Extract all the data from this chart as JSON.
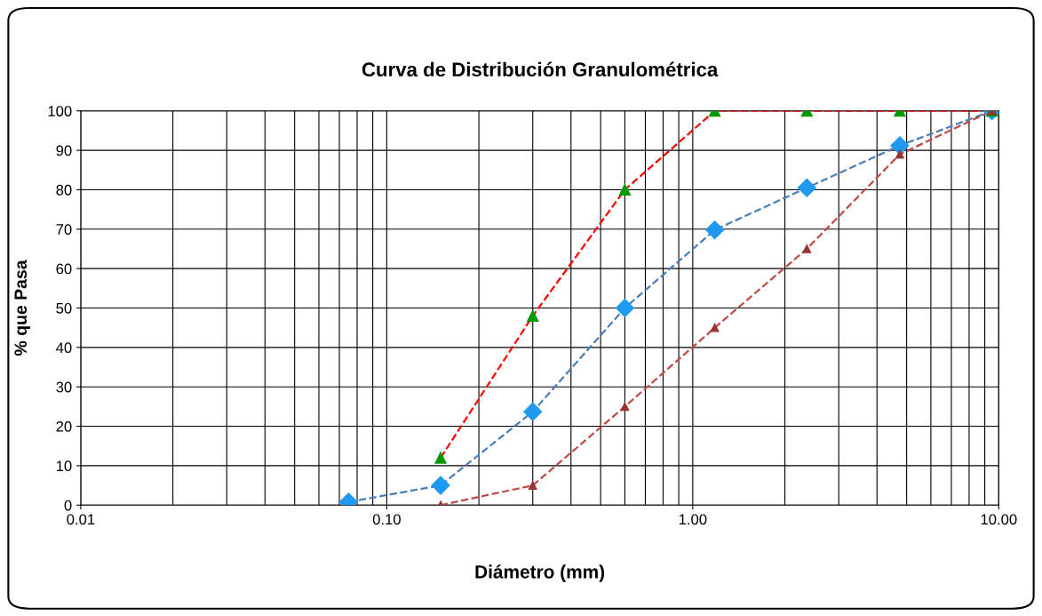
{
  "chart_data": {
    "type": "line",
    "title": "Curva de Distribución Granulométrica",
    "xlabel": "Diámetro (mm)",
    "ylabel": "% que Pasa",
    "x": [
      0.075,
      0.15,
      0.3,
      0.6,
      1.18,
      2.36,
      4.75,
      9.5
    ],
    "log": "x",
    "xlim": [
      0.01,
      10
    ],
    "xticks": [
      {
        "value": 0.01,
        "label": "0.01"
      },
      {
        "value": 0.1,
        "label": "0.10"
      },
      {
        "value": 1,
        "label": "1.00"
      },
      {
        "value": 10,
        "label": "10.00"
      }
    ],
    "ylim": [
      0,
      100
    ],
    "yticks": [
      0,
      10,
      20,
      30,
      40,
      50,
      60,
      70,
      80,
      90,
      100
    ],
    "grid": true,
    "line_style": "dashed",
    "series": [
      {
        "color": "#1e9bf0",
        "marker": "diamond",
        "values": [
          0.8,
          5,
          23.7,
          50,
          69.8,
          80.5,
          91.2,
          100
        ]
      },
      {
        "color": "#009900",
        "marker": "triangle",
        "x": [
          0.15,
          0.3,
          0.6,
          1.18,
          2.36,
          4.75,
          9.5
        ],
        "values": [
          12,
          48,
          80,
          100,
          100,
          100,
          100
        ]
      },
      {
        "color": "#993333",
        "marker": "triangle",
        "x": [
          0.15,
          0.3,
          0.6,
          1.18,
          2.36,
          4.75,
          9.5
        ],
        "values": [
          0,
          5,
          25,
          45,
          65,
          89,
          100
        ]
      }
    ]
  }
}
